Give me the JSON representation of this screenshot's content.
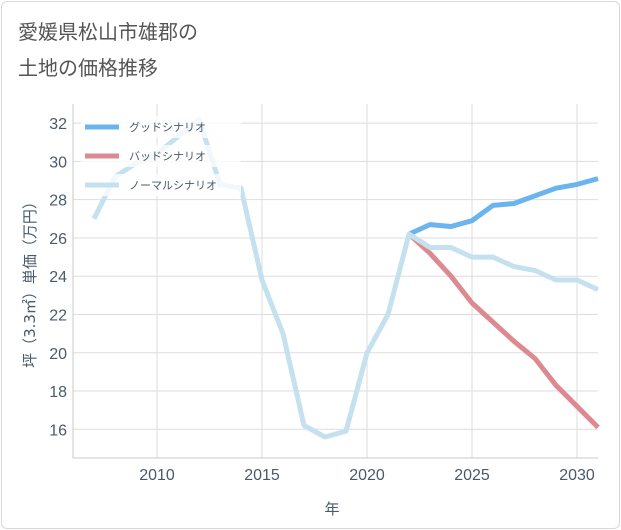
{
  "title": {
    "line1": "愛媛県松山市雄郡の",
    "line2": "土地の価格推移"
  },
  "chart_data": {
    "type": "line",
    "title": "愛媛県松山市雄郡の土地の価格推移",
    "xlabel": "年",
    "ylabel": "坪（3.3㎡）単価（万円）",
    "xlim": [
      2006,
      2031
    ],
    "ylim": [
      14.5,
      33
    ],
    "x_ticks": [
      2010,
      2015,
      2020,
      2025,
      2030
    ],
    "y_ticks": [
      16,
      18,
      20,
      22,
      24,
      26,
      28,
      30,
      32
    ],
    "grid": true,
    "legend_position": "top-left",
    "series": [
      {
        "name": "グッドシナリオ",
        "color": "#6cb4ee",
        "x": [
          2022,
          2023,
          2024,
          2025,
          2026,
          2027,
          2028,
          2029,
          2030,
          2031
        ],
        "y": [
          26.2,
          26.7,
          26.6,
          26.9,
          27.7,
          27.8,
          28.2,
          28.6,
          28.8,
          29.1
        ]
      },
      {
        "name": "バッドシナリオ",
        "color": "#dc8a90",
        "x": [
          2022,
          2023,
          2024,
          2025,
          2026,
          2027,
          2028,
          2029,
          2030,
          2031
        ],
        "y": [
          26.2,
          25.2,
          24.0,
          22.6,
          21.6,
          20.6,
          19.7,
          18.3,
          17.2,
          16.1
        ]
      },
      {
        "name": "ノーマルシナリオ",
        "color": "#c5e0ef",
        "x": [
          2007,
          2008,
          2009,
          2010,
          2011,
          2012,
          2013,
          2014,
          2015,
          2016,
          2017,
          2018,
          2019,
          2020,
          2021,
          2022,
          2023,
          2024,
          2025,
          2026,
          2027,
          2028,
          2029,
          2030,
          2031
        ],
        "y": [
          27.0,
          29.2,
          29.9,
          30.4,
          31.3,
          32.2,
          28.8,
          28.6,
          23.8,
          21.0,
          16.2,
          15.6,
          15.9,
          20.0,
          22.0,
          26.2,
          25.5,
          25.5,
          25.0,
          25.0,
          24.5,
          24.3,
          23.8,
          23.8,
          23.3
        ]
      }
    ]
  }
}
